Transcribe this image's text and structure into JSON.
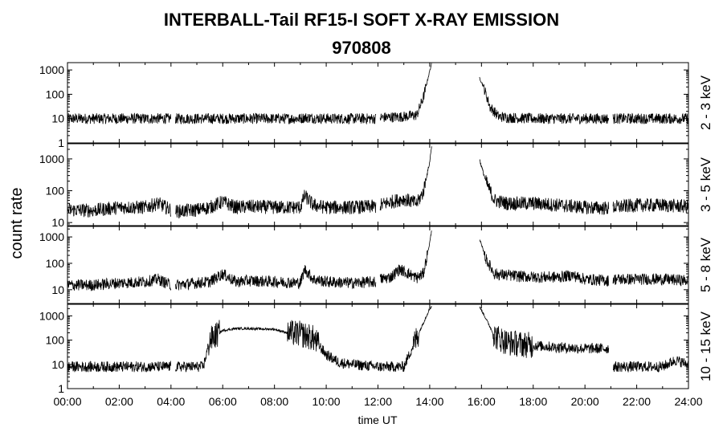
{
  "chart_data": {
    "type": "line",
    "title": "INTERBALL-Tail RF15-I SOFT X-RAY EMISSION",
    "subtitle": "970808",
    "xlabel": "time UT",
    "ylabel": "count rate",
    "xlim": [
      "00:00",
      "24:00"
    ],
    "x_ticks": [
      "00:00",
      "02:00",
      "04:00",
      "06:00",
      "08:00",
      "10:00",
      "12:00",
      "14:00",
      "16:00",
      "18:00",
      "20:00",
      "22:00",
      "24:00"
    ],
    "y_scale": "log",
    "panels": [
      {
        "name": "2 - 3 keV",
        "ylim": [
          1,
          2000
        ],
        "y_ticks": [
          "1",
          "10",
          "100",
          "1000"
        ],
        "gaps": [
          [
            "04:00",
            "04:10"
          ],
          [
            "11:55",
            "12:05"
          ],
          [
            "14:05",
            "15:55"
          ],
          [
            "20:55",
            "21:05"
          ]
        ],
        "series": [
          {
            "x": [
              "00:00",
              "01:00",
              "02:00",
              "03:00",
              "04:00",
              "04:10",
              "05:00",
              "06:00",
              "07:00",
              "08:00",
              "09:00",
              "09:10",
              "10:00",
              "11:00",
              "11:55",
              "12:05",
              "13:00",
              "13:30",
              "13:45",
              "14:00",
              "14:05",
              "15:55",
              "16:05",
              "16:20",
              "16:40",
              "17:00",
              "18:00",
              "19:00",
              "20:00",
              "20:55",
              "21:05",
              "22:00",
              "23:00",
              "24:00"
            ],
            "y": [
              10,
              10,
              10,
              10,
              10,
              10,
              10,
              10,
              10,
              10,
              10,
              11,
              10,
              10,
              10,
              11,
              12,
              14,
              70,
              900,
              2000,
              500,
              200,
              30,
              12,
              11,
              10,
              10,
              10,
              10,
              10,
              10,
              10,
              10
            ]
          }
        ]
      },
      {
        "name": "3 - 5 keV",
        "ylim": [
          8,
          3000
        ],
        "y_ticks": [
          "10",
          "100",
          "1000"
        ],
        "gaps": [
          [
            "04:00",
            "04:10"
          ],
          [
            "11:55",
            "12:05"
          ],
          [
            "14:05",
            "15:55"
          ],
          [
            "20:55",
            "21:05"
          ]
        ],
        "series": [
          {
            "x": [
              "00:00",
              "01:00",
              "02:00",
              "03:00",
              "03:30",
              "04:00",
              "04:10",
              "05:00",
              "05:30",
              "06:00",
              "06:30",
              "07:00",
              "08:00",
              "09:00",
              "09:10",
              "09:30",
              "10:00",
              "11:00",
              "11:55",
              "12:05",
              "12:30",
              "13:00",
              "13:30",
              "13:45",
              "14:00",
              "14:05",
              "15:55",
              "16:10",
              "16:30",
              "17:00",
              "18:00",
              "19:00",
              "20:00",
              "20:55",
              "21:05",
              "22:00",
              "23:00",
              "24:00"
            ],
            "y": [
              25,
              24,
              30,
              30,
              40,
              25,
              22,
              25,
              30,
              45,
              30,
              32,
              30,
              30,
              70,
              35,
              30,
              30,
              32,
              35,
              45,
              55,
              40,
              90,
              800,
              3000,
              1000,
              200,
              50,
              40,
              40,
              35,
              30,
              28,
              30,
              35,
              35,
              32
            ]
          }
        ]
      },
      {
        "name": "5 - 8 keV",
        "ylim": [
          3,
          2500
        ],
        "y_ticks": [
          "10",
          "100",
          "1000"
        ],
        "gaps": [
          [
            "04:00",
            "04:10"
          ],
          [
            "11:55",
            "12:05"
          ],
          [
            "14:05",
            "15:55"
          ],
          [
            "20:55",
            "21:05"
          ]
        ],
        "series": [
          {
            "x": [
              "00:00",
              "01:00",
              "02:00",
              "03:00",
              "03:30",
              "04:00",
              "04:10",
              "05:00",
              "05:30",
              "06:00",
              "06:30",
              "07:00",
              "08:00",
              "09:00",
              "09:10",
              "09:30",
              "10:00",
              "11:00",
              "11:55",
              "12:05",
              "12:30",
              "12:50",
              "13:30",
              "13:45",
              "14:00",
              "14:05",
              "15:55",
              "16:10",
              "16:30",
              "17:00",
              "18:00",
              "19:00",
              "19:30",
              "20:00",
              "20:55",
              "21:05",
              "22:00",
              "23:00",
              "24:00"
            ],
            "y": [
              15,
              15,
              18,
              20,
              25,
              15,
              15,
              18,
              20,
              40,
              20,
              22,
              20,
              18,
              60,
              25,
              20,
              18,
              20,
              25,
              30,
              60,
              28,
              40,
              600,
              2000,
              900,
              150,
              40,
              35,
              30,
              30,
              35,
              25,
              22,
              25,
              25,
              25,
              22
            ]
          }
        ]
      },
      {
        "name": "10 - 15 keV",
        "ylim": [
          1,
          3000
        ],
        "y_ticks": [
          "1",
          "10",
          "100",
          "1000"
        ],
        "gaps": [
          [
            "04:00",
            "04:10"
          ],
          [
            "14:05",
            "15:55"
          ],
          [
            "20:55",
            "21:05"
          ]
        ],
        "series": [
          {
            "x": [
              "00:00",
              "01:00",
              "02:00",
              "03:00",
              "04:00",
              "04:10",
              "05:00",
              "05:15",
              "05:30",
              "06:00",
              "06:30",
              "07:00",
              "08:00",
              "08:30",
              "09:00",
              "09:30",
              "10:00",
              "10:30",
              "11:00",
              "12:00",
              "13:00",
              "13:45",
              "14:00",
              "14:05",
              "15:55",
              "16:10",
              "16:30",
              "17:00",
              "18:00",
              "19:00",
              "20:00",
              "20:55",
              "21:05",
              "22:00",
              "23:00",
              "23:30",
              "24:00"
            ],
            "y": [
              8,
              8,
              8,
              8,
              8,
              8,
              8,
              8,
              100,
              250,
              300,
              300,
              280,
              200,
              180,
              120,
              25,
              12,
              10,
              8,
              8,
              500,
              2000,
              2500,
              2500,
              800,
              150,
              80,
              60,
              50,
              45,
              45,
              8,
              8,
              8,
              15,
              10
            ]
          }
        ]
      }
    ]
  }
}
